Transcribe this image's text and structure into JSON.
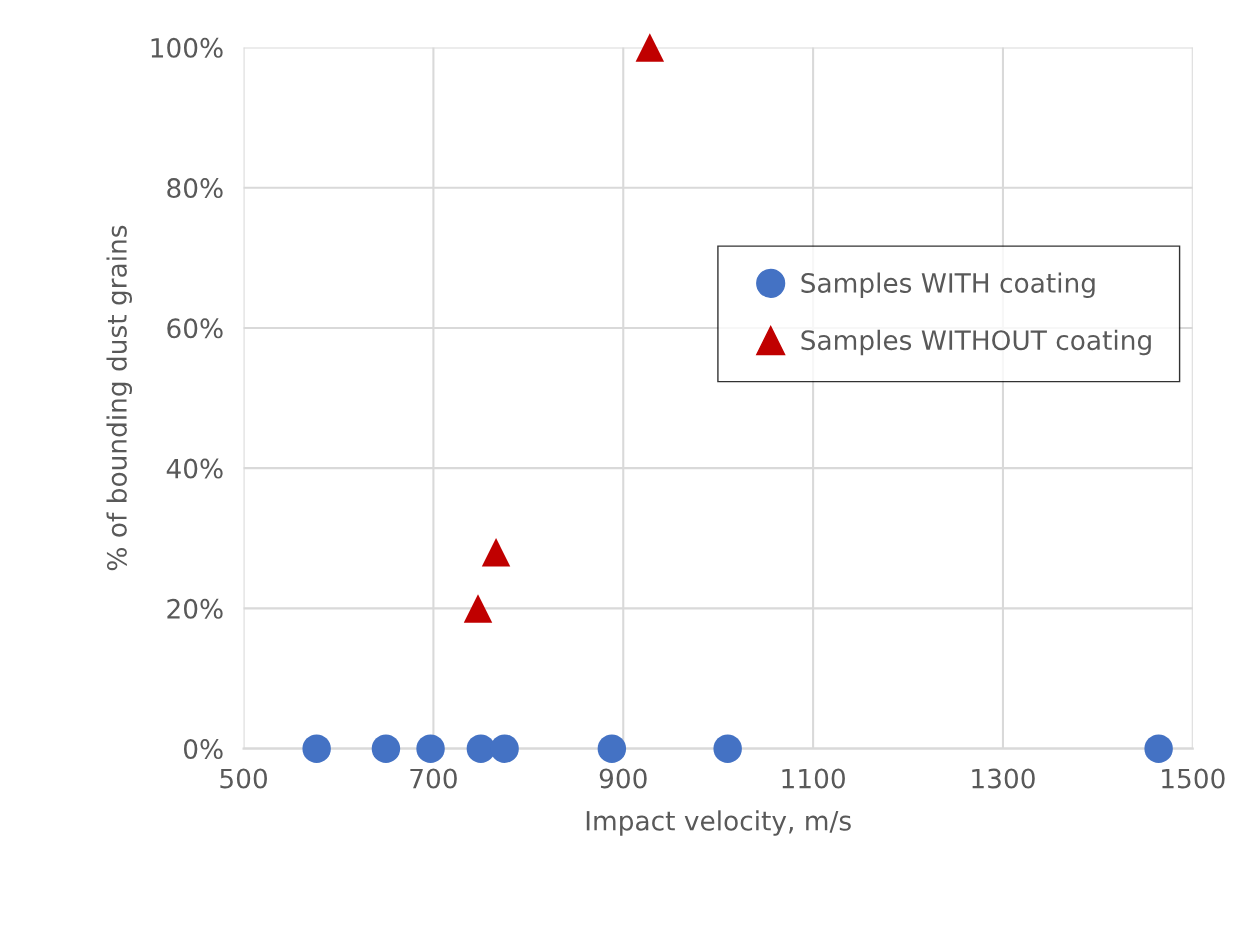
{
  "chart_data": {
    "type": "scatter",
    "xlabel": "Impact velocity, m/s",
    "ylabel": "% of bounding dust grains",
    "series": [
      {
        "name": "Samples WITH coating",
        "color": "#4472c4",
        "marker": "circle",
        "x": [
          577,
          650,
          697,
          750,
          775,
          888,
          1010,
          1464
        ],
        "values": [
          0,
          0,
          0,
          0,
          0,
          0,
          0,
          0
        ]
      },
      {
        "name": "Samples WITHOUT coating",
        "color": "#c00000",
        "marker": "triangle",
        "x": [
          747,
          766,
          928
        ],
        "values": [
          20,
          28,
          100
        ]
      }
    ],
    "xlim": [
      500,
      1500
    ],
    "xticks": [
      500,
      700,
      900,
      1100,
      1300,
      1500
    ],
    "ylim": [
      0,
      100
    ],
    "yticks": [
      {
        "value": 0,
        "label": "0%"
      },
      {
        "value": 20,
        "label": "20%"
      },
      {
        "value": 40,
        "label": "40%"
      },
      {
        "value": 60,
        "label": "60%"
      },
      {
        "value": 80,
        "label": "80%"
      },
      {
        "value": 100,
        "label": "100%"
      }
    ],
    "grid": true,
    "legend": "right"
  }
}
